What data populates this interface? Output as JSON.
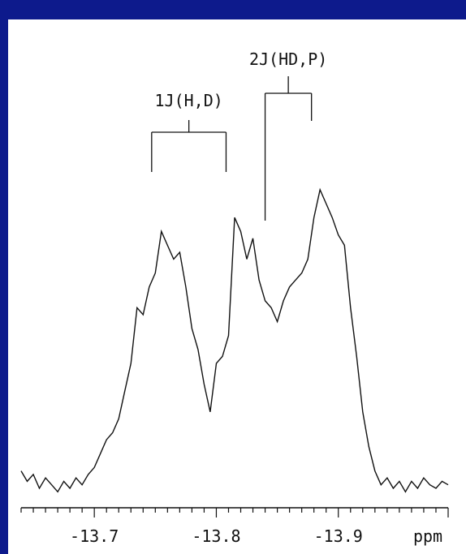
{
  "colors": {
    "frame": "#0d1a8c",
    "panel": "#ffffff",
    "trace": "#111111"
  },
  "chart_data": {
    "type": "line",
    "title": "",
    "xlabel": "ppm",
    "ylabel": "",
    "xlim": [
      -13.64,
      -13.99
    ],
    "x_reversed": true,
    "grid": false,
    "x_ticks": [
      {
        "value": -13.7,
        "label": "-13.7"
      },
      {
        "value": -13.8,
        "label": "-13.8"
      },
      {
        "value": -13.9,
        "label": "-13.9"
      }
    ],
    "annotations": [
      {
        "label": "1J(H,D)",
        "x1": -13.747,
        "x2": -13.808
      },
      {
        "label": "2J(HD,P)",
        "x1": -13.84,
        "x2": -13.878
      }
    ],
    "series": [
      {
        "x": [
          -13.64,
          -13.645,
          -13.65,
          -13.655,
          -13.66,
          -13.665,
          -13.67,
          -13.675,
          -13.68,
          -13.685,
          -13.69,
          -13.695,
          -13.7,
          -13.705,
          -13.71,
          -13.715,
          -13.72,
          -13.725,
          -13.73,
          -13.735,
          -13.74,
          -13.745,
          -13.75,
          -13.755,
          -13.76,
          -13.765,
          -13.77,
          -13.775,
          -13.78,
          -13.785,
          -13.79,
          -13.795,
          -13.8,
          -13.805,
          -13.81,
          -13.815,
          -13.82,
          -13.825,
          -13.83,
          -13.835,
          -13.84,
          -13.845,
          -13.85,
          -13.855,
          -13.86,
          -13.865,
          -13.87,
          -13.875,
          -13.88,
          -13.885,
          -13.89,
          -13.895,
          -13.9,
          -13.905,
          -13.91,
          -13.915,
          -13.92,
          -13.925,
          -13.93,
          -13.935,
          -13.94,
          -13.945,
          -13.95,
          -13.955,
          -13.96,
          -13.965,
          -13.97,
          -13.975,
          -13.98,
          -13.985,
          -13.99
        ],
        "y": [
          0.05,
          0.02,
          0.04,
          0.0,
          0.03,
          0.01,
          -0.01,
          0.02,
          0.0,
          0.03,
          0.01,
          0.04,
          0.06,
          0.1,
          0.14,
          0.16,
          0.2,
          0.28,
          0.36,
          0.52,
          0.5,
          0.58,
          0.62,
          0.74,
          0.7,
          0.66,
          0.68,
          0.58,
          0.46,
          0.4,
          0.3,
          0.22,
          0.36,
          0.38,
          0.44,
          0.78,
          0.74,
          0.66,
          0.72,
          0.6,
          0.54,
          0.52,
          0.48,
          0.54,
          0.58,
          0.6,
          0.62,
          0.66,
          0.78,
          0.86,
          0.82,
          0.78,
          0.73,
          0.7,
          0.52,
          0.38,
          0.22,
          0.12,
          0.05,
          0.01,
          0.03,
          0.0,
          0.02,
          -0.01,
          0.02,
          0.0,
          0.03,
          0.01,
          0.0,
          0.02,
          0.01
        ]
      }
    ]
  }
}
